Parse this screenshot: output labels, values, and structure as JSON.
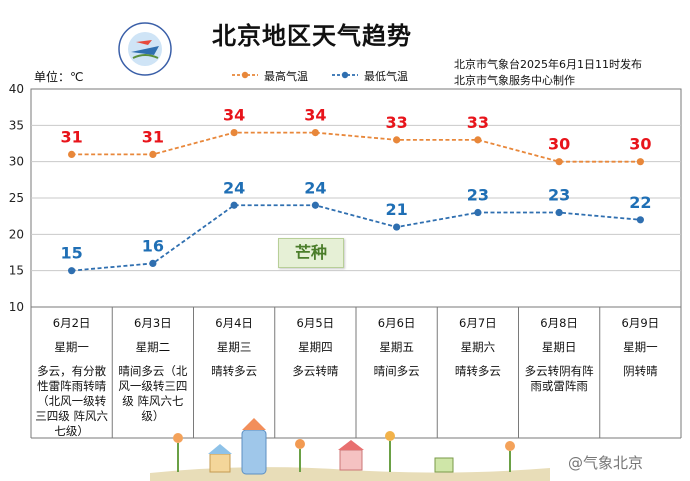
{
  "header": {
    "title": "北京地区天气趋势",
    "unit": "单位：℃",
    "source_line1": "北京市气象台2025年6月1日11时发布",
    "source_line2": "北京市气象服务中心制作",
    "legend_high": "最高气温",
    "legend_low": "最低气温"
  },
  "annotation": {
    "solar_term": "芒种"
  },
  "footer": {
    "weibo": "@气象北京"
  },
  "colors": {
    "high_line": "#e8873a",
    "low_line": "#2f6fb0",
    "high_label": "#e8141b",
    "low_label": "#1f6fb5",
    "grid": "#c9c9c9"
  },
  "chart_data": {
    "type": "line",
    "categories": [
      "6月2日",
      "6月3日",
      "6月4日",
      "6月5日",
      "6月6日",
      "6月7日",
      "6月8日",
      "6月9日"
    ],
    "series": [
      {
        "name": "最高气温",
        "values": [
          31,
          31,
          34,
          34,
          33,
          33,
          30,
          30
        ]
      },
      {
        "name": "最低气温",
        "values": [
          15,
          16,
          24,
          24,
          21,
          23,
          23,
          22
        ]
      }
    ],
    "ylim": [
      10,
      40
    ],
    "yticks": [
      10,
      15,
      20,
      25,
      30,
      35,
      40
    ],
    "grid": true,
    "legend": "top-center"
  },
  "days": [
    {
      "date": "6月2日",
      "weekday": "星期一",
      "weather": "多云，有分散性雷阵雨转晴（北风一级转三四级 阵风六七级）"
    },
    {
      "date": "6月3日",
      "weekday": "星期二",
      "weather": "晴间多云（北风一级转三四级 阵风六七级）"
    },
    {
      "date": "6月4日",
      "weekday": "星期三",
      "weather": "晴转多云"
    },
    {
      "date": "6月5日",
      "weekday": "星期四",
      "weather": "多云转晴"
    },
    {
      "date": "6月6日",
      "weekday": "星期五",
      "weather": "晴间多云"
    },
    {
      "date": "6月7日",
      "weekday": "星期六",
      "weather": "晴转多云"
    },
    {
      "date": "6月8日",
      "weekday": "星期日",
      "weather": "多云转阴有阵雨或雷阵雨"
    },
    {
      "date": "6月9日",
      "weekday": "星期一",
      "weather": "阴转晴"
    }
  ]
}
